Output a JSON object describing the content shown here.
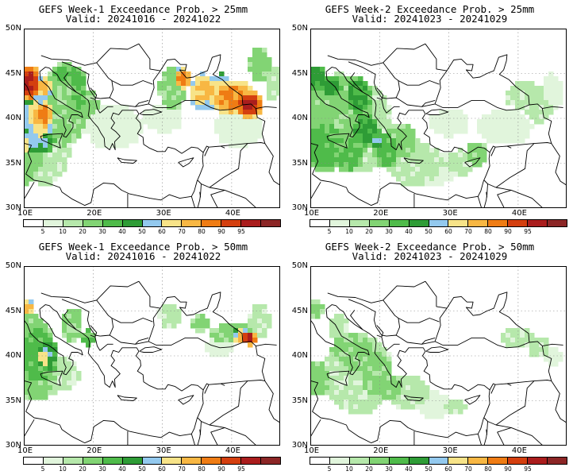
{
  "colors": {
    "levels": [
      "#ffffff",
      "#e1f5dc",
      "#b6e8ab",
      "#82d474",
      "#4fbb4a",
      "#2e9c36",
      "#93c9ee",
      "#f7e388",
      "#f8b743",
      "#ef7c14",
      "#d43f0f",
      "#aa1d1d",
      "#8c2626"
    ],
    "coastline": "#000000",
    "grid": "#888888"
  },
  "colorbar": {
    "ticks": [
      "5",
      "10",
      "20",
      "30",
      "40",
      "50",
      "60",
      "70",
      "80",
      "90",
      "95"
    ]
  },
  "axes": {
    "lat_labels": [
      "50N",
      "45N",
      "40N",
      "35N",
      "30N"
    ],
    "lon_labels": [
      "10E",
      "20E",
      "30E",
      "40E"
    ],
    "lon_range": [
      10,
      47
    ],
    "lat_range": [
      30,
      50
    ]
  },
  "panels": [
    {
      "id": "p1",
      "title_line1": "GEFS Week-1 Exceedance Prob. > 25mm",
      "title_line2": "Valid: 20241016 - 20241022",
      "field": "w1_25"
    },
    {
      "id": "p2",
      "title_line1": "GEFS Week-2 Exceedance Prob. > 25mm",
      "title_line2": "Valid: 20241023 - 20241029",
      "field": "w2_25"
    },
    {
      "id": "p3",
      "title_line1": "GEFS Week-1 Exceedance Prob. > 50mm",
      "title_line2": "Valid: 20241016 - 20241022",
      "field": "w1_50"
    },
    {
      "id": "p4",
      "title_line1": "GEFS Week-2 Exceedance Prob. > 50mm",
      "title_line2": "Valid: 20241023 - 20241029",
      "field": "w2_50"
    }
  ]
}
